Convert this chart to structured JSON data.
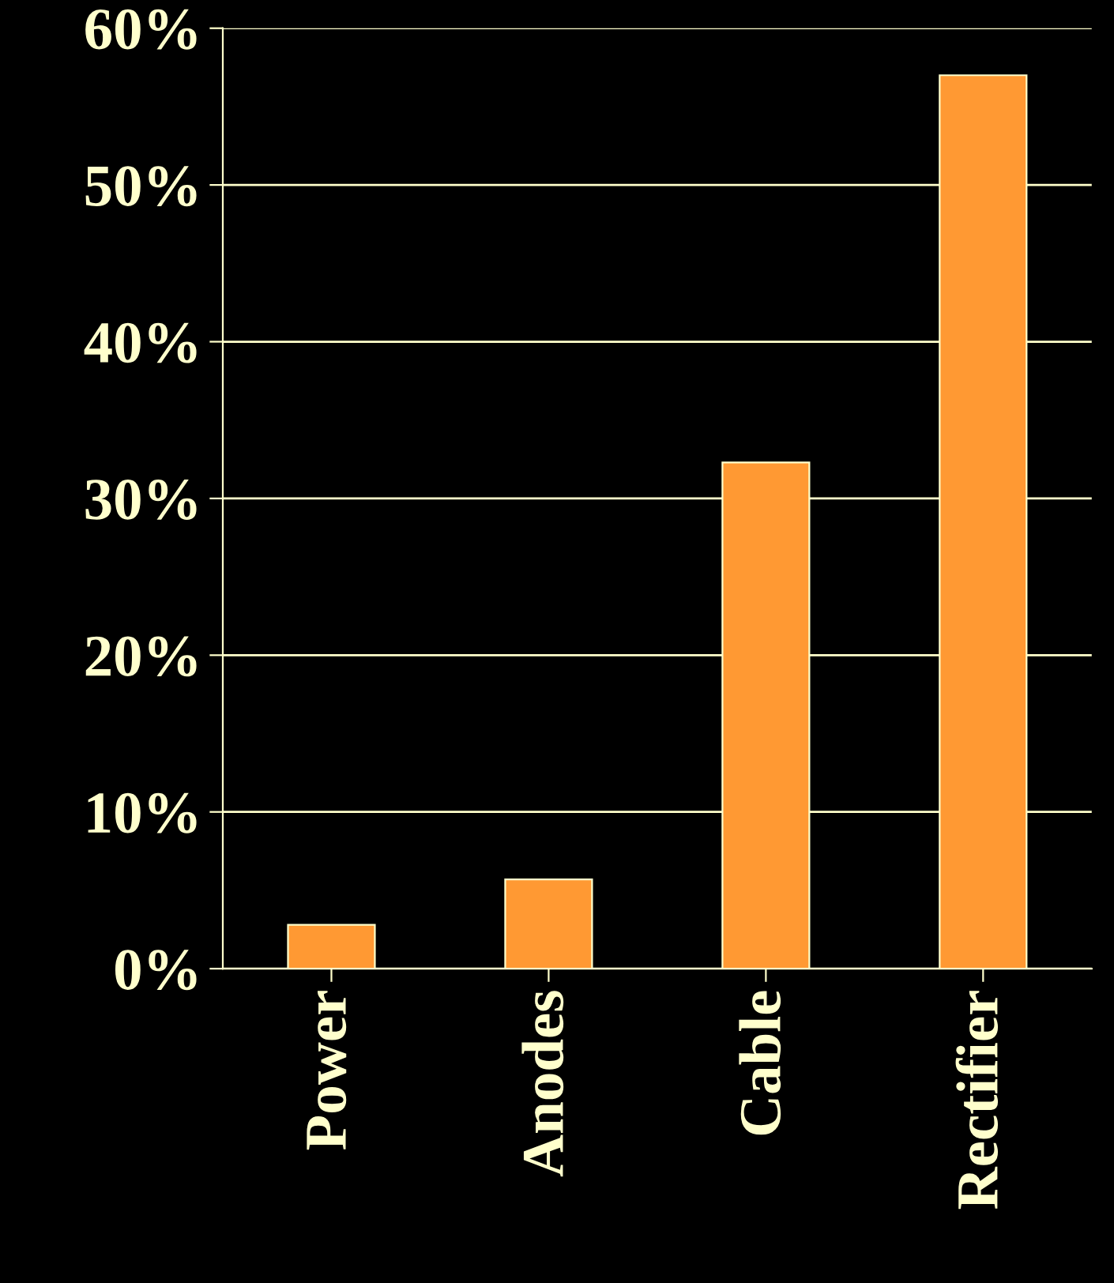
{
  "chart_data": {
    "type": "bar",
    "categories": [
      "Power",
      "Anodes",
      "Cable",
      "Rectifier"
    ],
    "values": [
      2.8,
      5.7,
      32.3,
      57.0
    ],
    "color": "#ff9933",
    "ylim": [
      0,
      60
    ],
    "yticks": [
      {
        "value": 0,
        "label": "0%"
      },
      {
        "value": 10,
        "label": "10%"
      },
      {
        "value": 20,
        "label": "20%"
      },
      {
        "value": 30,
        "label": "30%"
      },
      {
        "value": 40,
        "label": "40%"
      },
      {
        "value": 50,
        "label": "50%"
      },
      {
        "value": 60,
        "label": "60%"
      }
    ],
    "grid": "y"
  }
}
